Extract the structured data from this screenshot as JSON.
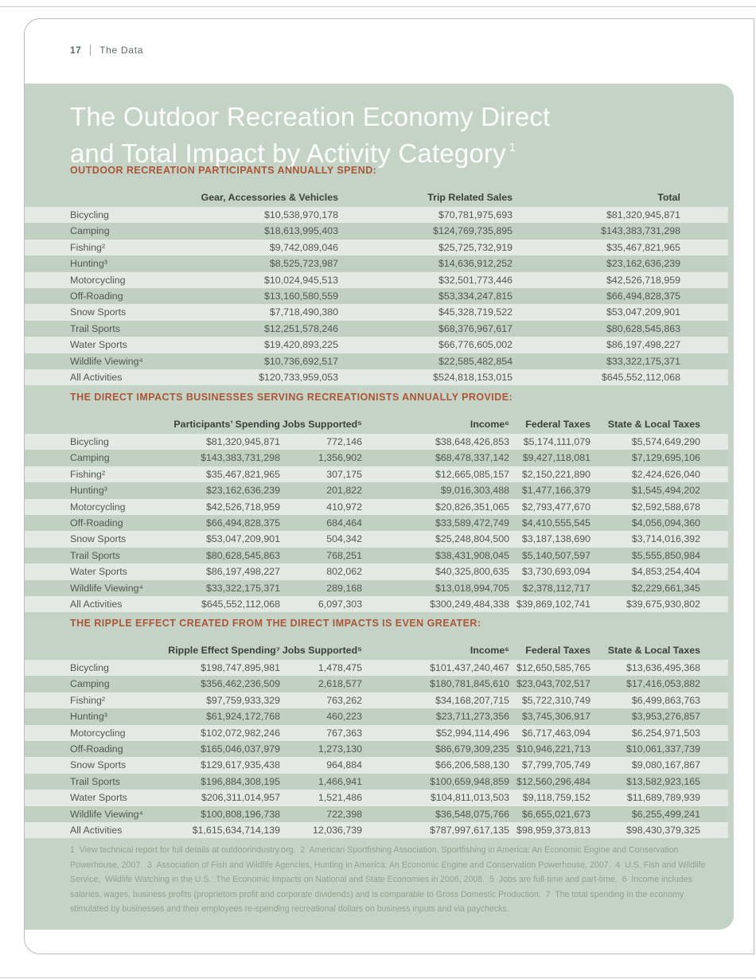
{
  "colors": {
    "panel_bg": "#c5d3c6",
    "row_light": "#e2eae3",
    "row_dark": "#c1d0c3",
    "accent_heading": "#ab5636",
    "title_text": "#fcfefc",
    "header_text": "#3a403a",
    "body_text": "#515851",
    "footnote_text": "#90a292",
    "card_border": "#b6bdb7",
    "rule": "#c9cdc9",
    "page_header_text": "#5d6a62"
  },
  "page_header": {
    "page_number": "17",
    "section_label": "The Data"
  },
  "title": {
    "line1": "The Outdoor Recreation Economy Direct",
    "line2": "and Total Impact by Activity Category",
    "superscript": "1"
  },
  "tables": [
    {
      "heading": "OUTDOOR RECREATION PARTICIPANTS ANNUALLY SPEND:",
      "columns": [
        "Gear, Accessories & Vehicles",
        "Trip Related Sales",
        "Total"
      ],
      "rows": [
        [
          "Bicycling",
          "$10,538,970,178",
          "$70,781,975,693",
          "$81,320,945,871"
        ],
        [
          "Camping",
          "$18,613,995,403",
          "$124,769,735,895",
          "$143,383,731,298"
        ],
        [
          "Fishing²",
          "$9,742,089,046",
          "$25,725,732,919",
          "$35,467,821,965"
        ],
        [
          "Hunting³",
          "$8,525,723,987",
          "$14,636,912,252",
          "$23,162,636,239"
        ],
        [
          "Motorcycling",
          "$10,024,945,513",
          "$32,501,773,446",
          "$42,526,718,959"
        ],
        [
          "Off-Roading",
          "$13,160,580,559",
          "$53,334,247,815",
          "$66,494,828,375"
        ],
        [
          "Snow Sports",
          "$7,718,490,380",
          "$45,328,719,522",
          "$53,047,209,901"
        ],
        [
          "Trail Sports",
          "$12,251,578,246",
          "$68,376,967,617",
          "$80,628,545,863"
        ],
        [
          "Water Sports",
          "$19,420,893,225",
          "$66,776,605,002",
          "$86,197,498,227"
        ],
        [
          "Wildlife Viewing⁴",
          "$10,736,692,517",
          "$22,585,482,854",
          "$33,322,175,371"
        ],
        [
          "All Activities",
          "$120,733,959,053",
          "$524,818,153,015",
          "$645,552,112,068"
        ]
      ]
    },
    {
      "heading": "THE DIRECT IMPACTS BUSINESSES SERVING RECREATIONISTS ANNUALLY PROVIDE:",
      "columns": [
        "Participants’ Spending",
        "Jobs Supported⁵",
        "Income⁶",
        "Federal Taxes",
        "State & Local Taxes"
      ],
      "rows": [
        [
          "Bicycling",
          "$81,320,945,871",
          "772,146",
          "$38,648,426,853",
          "$5,174,111,079",
          "$5,574,649,290"
        ],
        [
          "Camping",
          "$143,383,731,298",
          "1,356,902",
          "$68,478,337,142",
          "$9,427,118,081",
          "$7,129,695,106"
        ],
        [
          "Fishing²",
          "$35,467,821,965",
          "307,175",
          "$12,665,085,157",
          "$2,150,221,890",
          "$2,424,626,040"
        ],
        [
          "Hunting³",
          "$23,162,636,239",
          "201,822",
          "$9,016,303,488",
          "$1,477,166,379",
          "$1,545,494,202"
        ],
        [
          "Motorcycling",
          "$42,526,718,959",
          "410,972",
          "$20,826,351,065",
          "$2,793,477,670",
          "$2,592,588,678"
        ],
        [
          "Off-Roading",
          "$66,494,828,375",
          "684,464",
          "$33,589,472,749",
          "$4,410,555,545",
          "$4,056,094,360"
        ],
        [
          "Snow Sports",
          "$53,047,209,901",
          "504,342",
          "$25,248,804,500",
          "$3,187,138,690",
          "$3,714,016,392"
        ],
        [
          "Trail Sports",
          "$80,628,545,863",
          "768,251",
          "$38,431,908,045",
          "$5,140,507,597",
          "$5,555,850,984"
        ],
        [
          "Water Sports",
          "$86,197,498,227",
          "802,062",
          "$40,325,800,635",
          "$3,730,693,094",
          "$4,853,254,404"
        ],
        [
          "Wildlife Viewing⁴",
          "$33,322,175,371",
          "289,168",
          "$13,018,994,705",
          "$2,378,112,717",
          "$2,229,661,345"
        ],
        [
          "All Activities",
          "$645,552,112,068",
          "6,097,303",
          "$300,249,484,338",
          "$39,869,102,741",
          "$39,675,930,802"
        ]
      ]
    },
    {
      "heading": "THE RIPPLE EFFECT CREATED FROM THE DIRECT IMPACTS IS EVEN GREATER:",
      "columns": [
        "Ripple Effect Spending⁷",
        "Jobs Supported⁵",
        "Income⁶",
        "Federal Taxes",
        "State & Local Taxes"
      ],
      "rows": [
        [
          "Bicycling",
          "$198,747,895,981",
          "1,478,475",
          "$101,437,240,467",
          "$12,650,585,765",
          "$13,636,495,368"
        ],
        [
          "Camping",
          "$356,462,236,509",
          "2,618,577",
          "$180,781,845,610",
          "$23,043,702,517",
          "$17,416,053,882"
        ],
        [
          "Fishing²",
          "$97,759,933,329",
          "763,262",
          "$34,168,207,715",
          "$5,722,310,749",
          "$6,499,863,763"
        ],
        [
          "Hunting³",
          "$61,924,172,768",
          "460,223",
          "$23,711,273,356",
          "$3,745,306,917",
          "$3,953,276,857"
        ],
        [
          "Motorcycling",
          "$102,072,982,246",
          "767,363",
          "$52,994,114,496",
          "$6,717,463,094",
          "$6,254,971,503"
        ],
        [
          "Off-Roading",
          "$165,046,037,979",
          "1,273,130",
          "$86,679,309,235",
          "$10,946,221,713",
          "$10,061,337,739"
        ],
        [
          "Snow Sports",
          "$129,617,935,438",
          "964,884",
          "$66,206,588,130",
          "$7,799,705,749",
          "$9,080,167,867"
        ],
        [
          "Trail Sports",
          "$196,884,308,195",
          "1,466,941",
          "$100,659,948,859",
          "$12,560,296,484",
          "$13,582,923,165"
        ],
        [
          "Water Sports",
          "$206,311,014,957",
          "1,521,486",
          "$104,811,013,503",
          "$9,118,759,152",
          "$11,689,789,939"
        ],
        [
          "Wildlife Viewing⁴",
          "$100,808,196,738",
          "722,398",
          "$36,548,075,766",
          "$6,655,021,673",
          "$6,255,499,241"
        ],
        [
          "All Activities",
          "$1,615,634,714,139",
          "12,036,739",
          "$787,997,617,135",
          "$98,959,373,813",
          "$98,430,379,325"
        ]
      ]
    }
  ],
  "footnotes": "1  View technical report for full details at outdoorindustry.org.  2  American Sportfishing Association, Sportfishing in America: An Economic Engine and Conservation Powerhouse, 2007.  3  Association of Fish and Wildlife Agencies, Hunting in America: An Economic Engine and Conservation Powerhouse, 2007.  4  U.S. Fish and Wildlife Service,  Wildlife Watching in the U.S.: The Economic Impacts on National and State Economies in 2006, 2008.  5  Jobs are full-time and part-time.  6  Income includes salaries, wages, business profits (proprietors profit and corporate dividends) and is comparable to Gross Domestic Production.  7  The total spending in the economy stimulated by businesses and their employees re-spending recreational dollars on business inputs and via paychecks."
}
